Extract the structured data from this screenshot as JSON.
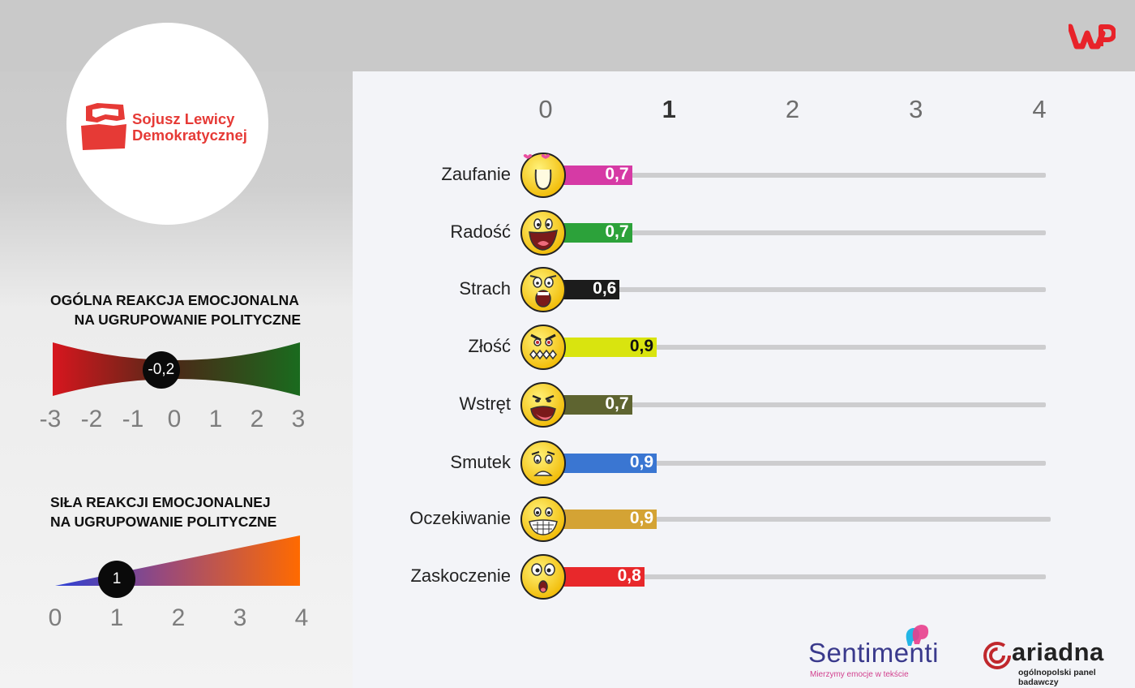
{
  "party": {
    "name_line1": "Sojusz Lewicy",
    "name_line2": "Demokratycznej",
    "brand_color": "#e63a36"
  },
  "overall_reaction": {
    "title_line1": "OGÓLNA REAKCJA EMOCJONALNA",
    "title_line2": "NA UGRUPOWANIE POLITYCZNE",
    "value": -0.2,
    "value_label": "-0,2",
    "scale_min": -3,
    "scale_max": 3,
    "ticks": [
      "-3",
      "-2",
      "-1",
      "0",
      "1",
      "2",
      "3"
    ],
    "gradient_colors": [
      "#d7161e",
      "#1a6b1e"
    ]
  },
  "reaction_strength": {
    "title_line1": "SIŁA REAKCJI EMOCJONALNEJ",
    "title_line2": "NA UGRUPOWANIE POLITYCZNE",
    "value": 1,
    "value_label": "1",
    "scale_min": 0,
    "scale_max": 4,
    "ticks": [
      "0",
      "1",
      "2",
      "3",
      "4"
    ],
    "gradient_colors": [
      "#2a3fd6",
      "#ff6a00"
    ]
  },
  "chart_data": {
    "type": "bar",
    "orientation": "horizontal",
    "xlim": [
      0,
      4
    ],
    "x_ticks": [
      "0",
      "1",
      "2",
      "3",
      "4"
    ],
    "categories": [
      "Zaufanie",
      "Radość",
      "Strach",
      "Złość",
      "Wstręt",
      "Smutek",
      "Oczekiwanie",
      "Zaskoczenie"
    ],
    "values": [
      0.7,
      0.7,
      0.6,
      0.9,
      0.7,
      0.9,
      0.9,
      0.8
    ],
    "value_labels": [
      "0,7",
      "0,7",
      "0,6",
      "0,9",
      "0,7",
      "0,9",
      "0,9",
      "0,8"
    ],
    "colors": [
      "#d63aa5",
      "#2ca23a",
      "#1c1c1c",
      "#d9e40f",
      "#5e6430",
      "#3a76d2",
      "#d4a334",
      "#e8282b"
    ],
    "icons": [
      "face-love-icon",
      "face-joy-icon",
      "face-fear-icon",
      "face-anger-icon",
      "face-disgust-icon",
      "face-sad-icon",
      "face-anticipation-icon",
      "face-surprise-icon"
    ],
    "grid": false
  },
  "footer": {
    "sentimenti": "Sentimenti",
    "sentimenti_tagline": "Mierzymy emocje w tekście",
    "ariadna": "ariadna",
    "ariadna_tagline": "ogólnopolski panel badawczy"
  }
}
